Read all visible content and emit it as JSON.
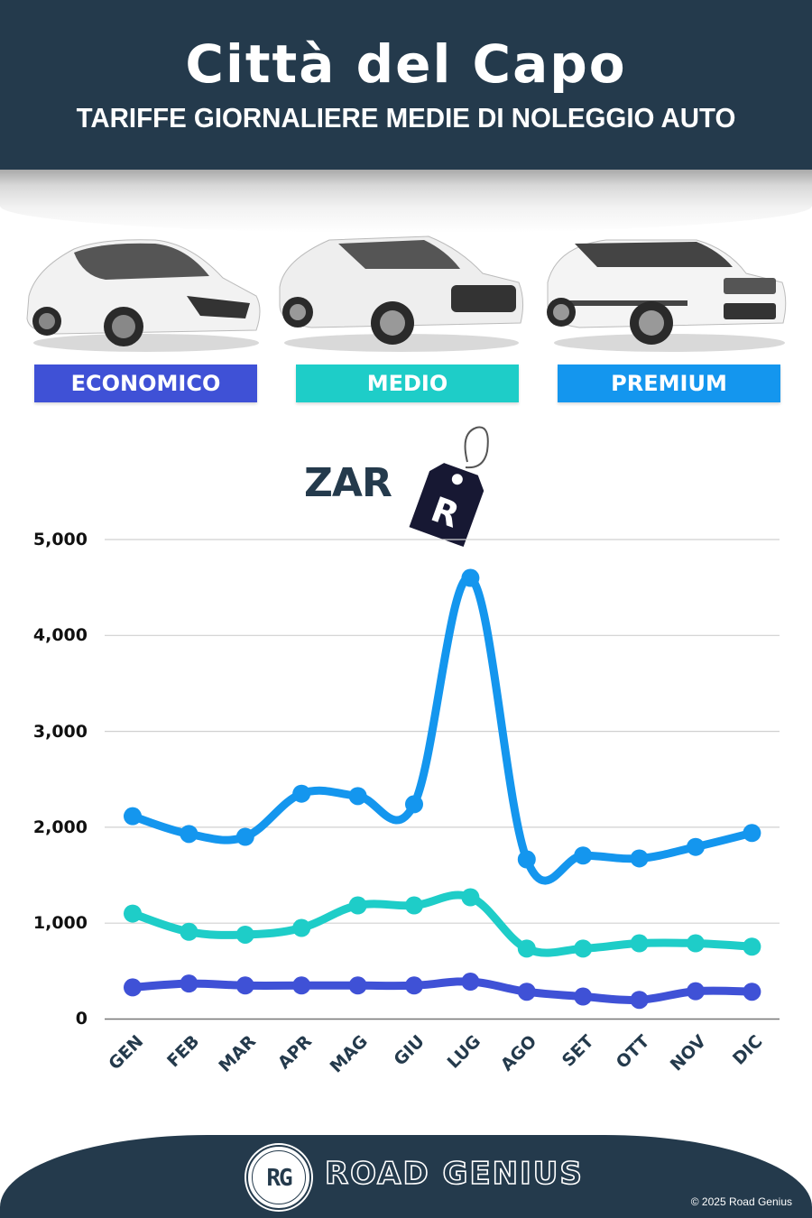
{
  "header": {
    "title": "Città del Capo",
    "subtitle": "TARIFFE GIORNALIERE MEDIE DI NOLEGGIO AUTO"
  },
  "categories": [
    {
      "label": "ECONOMICO",
      "color": "#3f51d6"
    },
    {
      "label": "MEDIO",
      "color": "#1ecdc8"
    },
    {
      "label": "PREMIUM",
      "color": "#1496ee"
    }
  ],
  "currency": {
    "label": "ZAR",
    "symbol": "R",
    "icon": "price-tag-icon"
  },
  "chart_data": {
    "type": "line",
    "title": "Città del Capo - Tariffe giornaliere medie di noleggio auto",
    "xlabel": "",
    "ylabel": "ZAR",
    "ylim": [
      0,
      5000
    ],
    "yticks": [
      "5,000",
      "4,000",
      "3,000",
      "2,000",
      "1,000",
      "0"
    ],
    "grid": true,
    "legend_position": "top (category badges)",
    "categories": [
      "GEN",
      "FEB",
      "MAR",
      "APR",
      "MAG",
      "GIU",
      "LUG",
      "AGO",
      "SET",
      "OTT",
      "NOV",
      "DIC"
    ],
    "series": [
      {
        "name": "Economico",
        "color": "#3f51d6",
        "values": [
          330,
          370,
          350,
          350,
          350,
          350,
          390,
          285,
          235,
          200,
          290,
          285
        ]
      },
      {
        "name": "Medio",
        "color": "#1ecdc8",
        "values": [
          1100,
          910,
          880,
          950,
          1185,
          1185,
          1270,
          735,
          735,
          790,
          790,
          755
        ]
      },
      {
        "name": "Premium",
        "color": "#1496ee",
        "values": [
          2115,
          1930,
          1900,
          2350,
          2325,
          2240,
          4600,
          1665,
          1705,
          1675,
          1795,
          1940
        ]
      }
    ]
  },
  "footer": {
    "logo_initials": "RG",
    "brand": "ROAD GENIUS",
    "copyright": "© 2025 Road Genius"
  }
}
